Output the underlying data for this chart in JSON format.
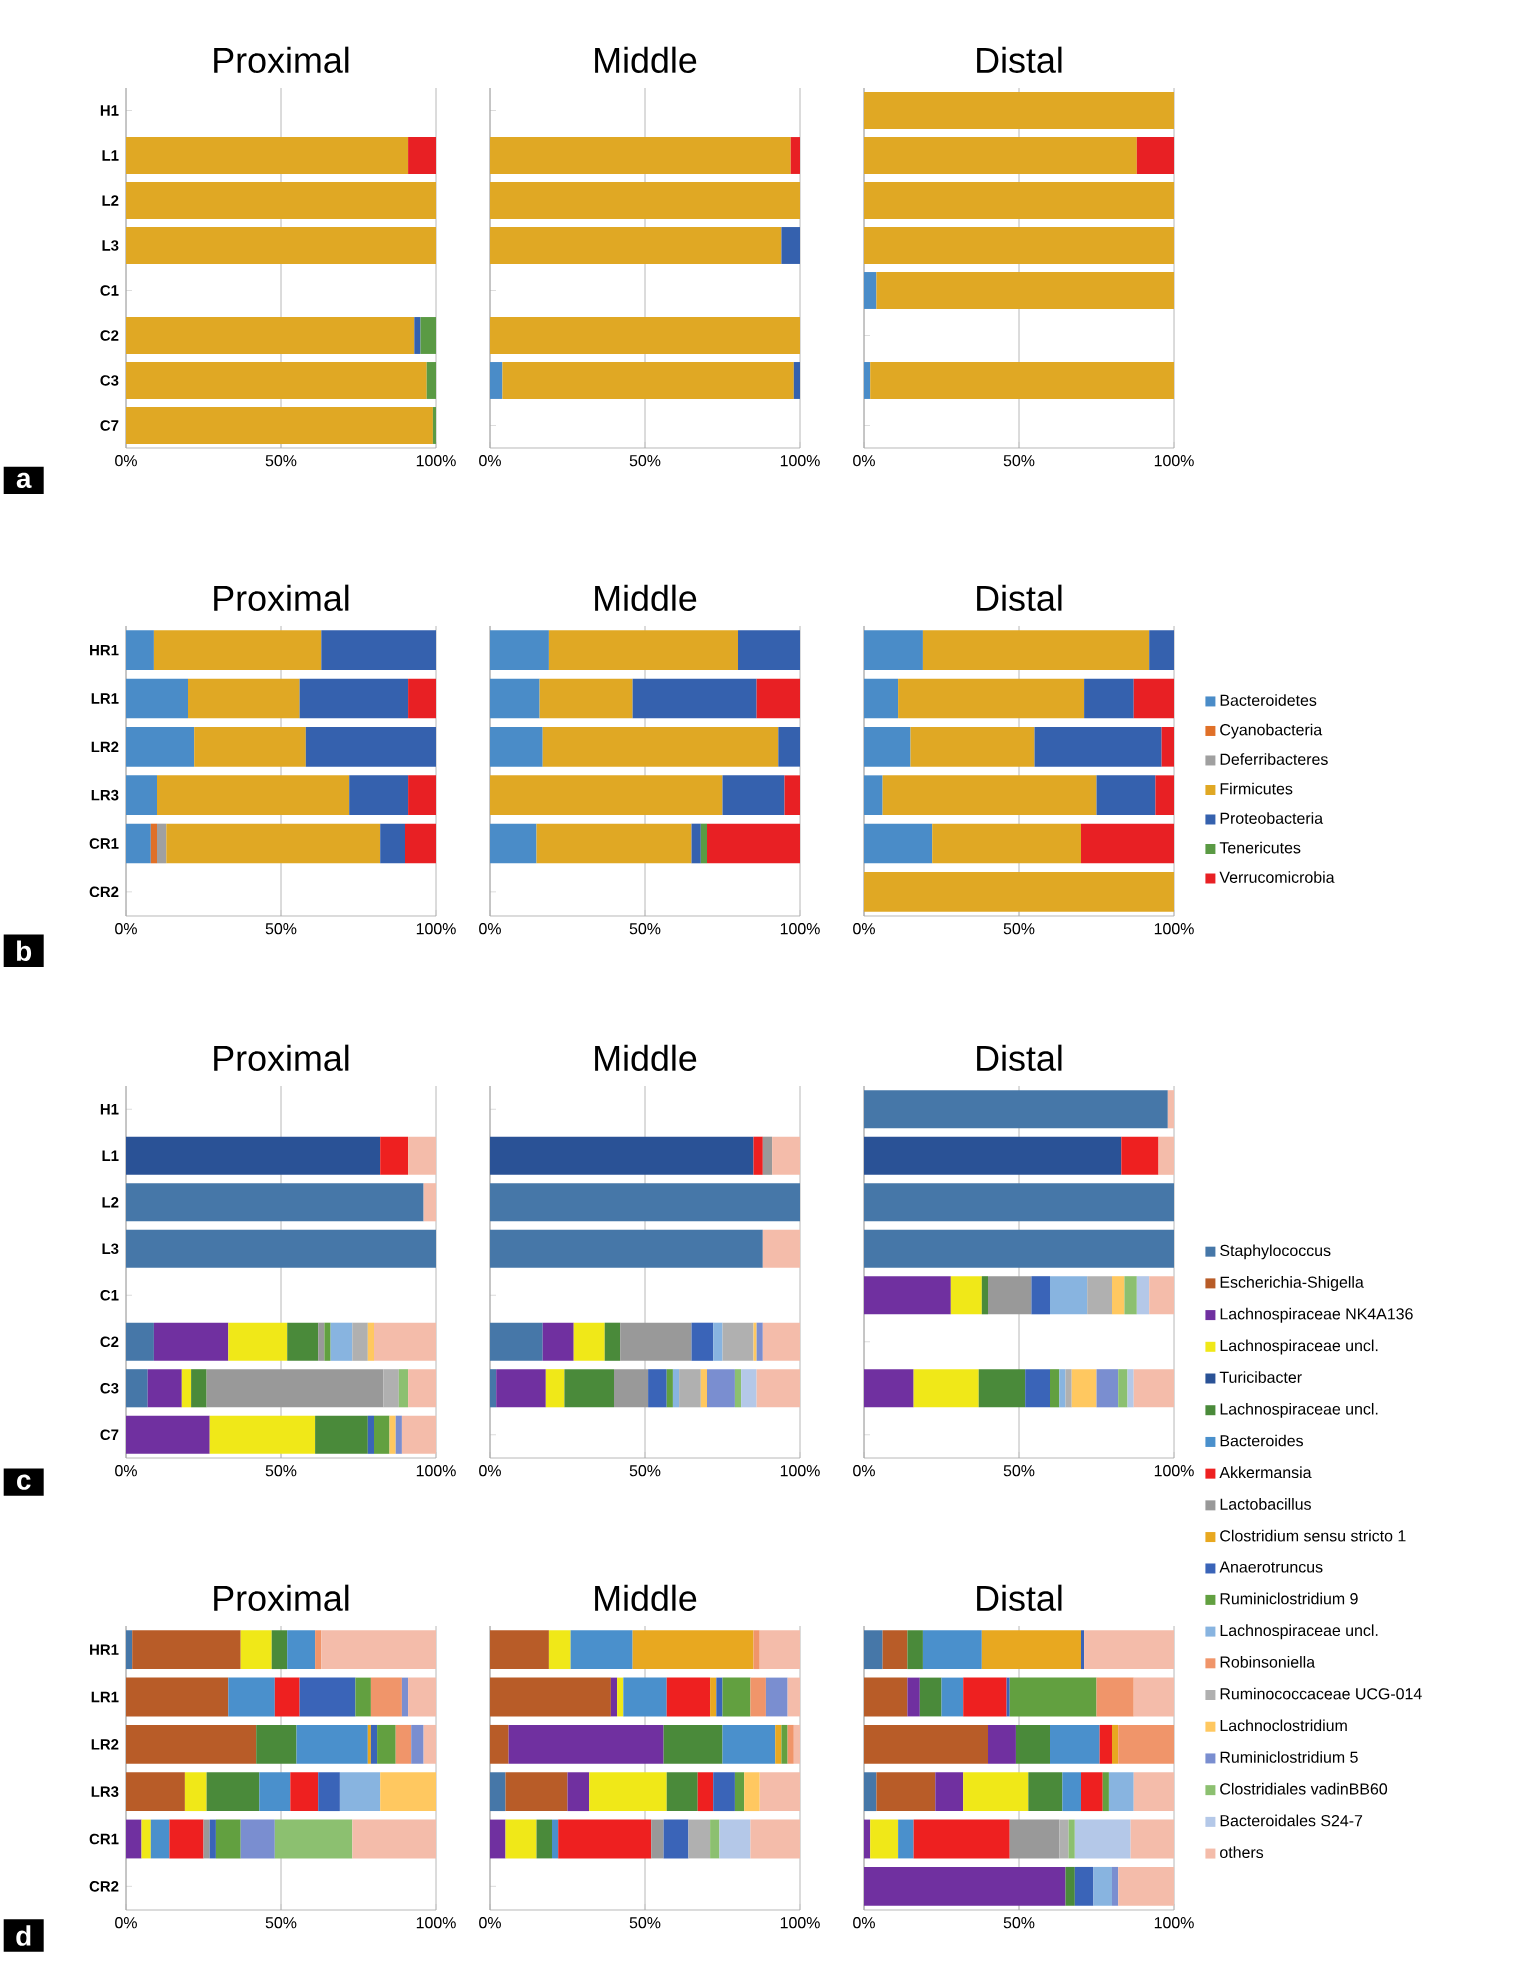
{
  "chart_data": [
    {
      "type": "bar",
      "orientation": "horizontal",
      "stacked": true,
      "title": "Proximal",
      "annotations": [
        "a"
      ],
      "categories": [
        "H1",
        "L1",
        "L2",
        "L3",
        "C1",
        "C2",
        "C3",
        "C7"
      ],
      "xlim": [
        0,
        100
      ],
      "xticks": [
        {
          "value": 0,
          "label": "0%"
        },
        {
          "value": 50,
          "label": "50%"
        },
        {
          "value": 100,
          "label": "100%"
        }
      ],
      "grid": "x",
      "series": [
        {
          "color": "#e0a824",
          "values": [
            null,
            91,
            100,
            100,
            null,
            93,
            97,
            99
          ]
        },
        {
          "color": "#3561ae",
          "values": [
            null,
            null,
            null,
            null,
            null,
            2,
            null,
            null
          ]
        },
        {
          "color": "#5a9a44",
          "values": [
            null,
            null,
            null,
            null,
            null,
            5,
            3,
            1
          ]
        },
        {
          "color": "#e82024",
          "values": [
            null,
            9,
            null,
            null,
            null,
            null,
            null,
            null
          ]
        }
      ]
    },
    {
      "type": "bar",
      "orientation": "horizontal",
      "stacked": true,
      "title": "Middle",
      "categories": [
        null,
        null,
        null,
        null,
        null,
        null,
        null,
        null
      ],
      "xlim": [
        0,
        100
      ],
      "xticks": [
        {
          "value": 0,
          "label": "0%"
        },
        {
          "value": 50,
          "label": "50%"
        },
        {
          "value": 100,
          "label": "100%"
        }
      ],
      "grid": "x",
      "series": [
        {
          "color": "#4a8cc8",
          "values": [
            null,
            null,
            null,
            null,
            null,
            null,
            4,
            null
          ]
        },
        {
          "color": "#e0a824",
          "values": [
            null,
            97,
            100,
            94,
            null,
            100,
            94,
            null
          ]
        },
        {
          "color": "#3561ae",
          "values": [
            null,
            null,
            null,
            6,
            null,
            null,
            2,
            null
          ]
        },
        {
          "color": "#e82024",
          "values": [
            null,
            3,
            null,
            null,
            null,
            null,
            null,
            null
          ]
        }
      ]
    },
    {
      "type": "bar",
      "orientation": "horizontal",
      "stacked": true,
      "title": "Distal",
      "categories": [
        null,
        null,
        null,
        null,
        null,
        null,
        null,
        null
      ],
      "xlim": [
        0,
        100
      ],
      "xticks": [
        {
          "value": 0,
          "label": "0%"
        },
        {
          "value": 50,
          "label": "50%"
        },
        {
          "value": 100,
          "label": "100%"
        }
      ],
      "grid": "x",
      "series": [
        {
          "color": "#4a8cc8",
          "values": [
            null,
            null,
            null,
            null,
            4,
            null,
            2,
            null
          ]
        },
        {
          "color": "#e0a824",
          "values": [
            100,
            88,
            100,
            100,
            96,
            null,
            98,
            null
          ]
        },
        {
          "color": "#e82024",
          "values": [
            null,
            12,
            null,
            null,
            null,
            null,
            null,
            null
          ]
        }
      ]
    },
    {
      "type": "bar",
      "orientation": "horizontal",
      "stacked": true,
      "title": "Proximal",
      "annotations": [
        "b"
      ],
      "categories": [
        "HR1",
        "LR1",
        "LR2",
        "LR3",
        "CR1",
        "CR2"
      ],
      "xlim": [
        0,
        100
      ],
      "xticks": [
        {
          "value": 0,
          "label": "0%"
        },
        {
          "value": 50,
          "label": "50%"
        },
        {
          "value": 100,
          "label": "100%"
        }
      ],
      "grid": "x",
      "series": [
        {
          "color": "#4a8cc8",
          "values": [
            9,
            20,
            22,
            10,
            8,
            null
          ]
        },
        {
          "color": "#e07028",
          "values": [
            null,
            null,
            null,
            null,
            2,
            null
          ]
        },
        {
          "color": "#a0a0a0",
          "values": [
            null,
            null,
            null,
            null,
            3,
            null
          ]
        },
        {
          "color": "#e0a824",
          "values": [
            54,
            36,
            36,
            62,
            69,
            null
          ]
        },
        {
          "color": "#3561ae",
          "values": [
            37,
            35,
            42,
            19,
            8,
            null
          ]
        },
        {
          "color": "#e82024",
          "values": [
            null,
            9,
            null,
            9,
            10,
            null
          ]
        }
      ]
    },
    {
      "type": "bar",
      "orientation": "horizontal",
      "stacked": true,
      "title": "Middle",
      "categories": [
        null,
        null,
        null,
        null,
        null,
        null
      ],
      "xlim": [
        0,
        100
      ],
      "xticks": [
        {
          "value": 0,
          "label": "0%"
        },
        {
          "value": 50,
          "label": "50%"
        },
        {
          "value": 100,
          "label": "100%"
        }
      ],
      "grid": "x",
      "series": [
        {
          "color": "#4a8cc8",
          "values": [
            19,
            16,
            17,
            null,
            15,
            null
          ]
        },
        {
          "color": "#e0a824",
          "values": [
            61,
            30,
            76,
            75,
            50,
            null
          ]
        },
        {
          "color": "#3561ae",
          "values": [
            20,
            40,
            7,
            20,
            3,
            null
          ]
        },
        {
          "color": "#5a9a44",
          "values": [
            null,
            null,
            null,
            null,
            2,
            null
          ]
        },
        {
          "color": "#e82024",
          "values": [
            null,
            14,
            null,
            5,
            30,
            null
          ]
        }
      ]
    },
    {
      "type": "bar",
      "orientation": "horizontal",
      "stacked": true,
      "title": "Distal",
      "legend": "right",
      "categories": [
        null,
        null,
        null,
        null,
        null,
        null
      ],
      "xlim": [
        0,
        100
      ],
      "xticks": [
        {
          "value": 0,
          "label": "0%"
        },
        {
          "value": 50,
          "label": "50%"
        },
        {
          "value": 100,
          "label": "100%"
        }
      ],
      "grid": "x",
      "series": [
        {
          "name": "Bacteroidetes",
          "color": "#4a8cc8",
          "values": [
            19,
            11,
            15,
            6,
            22,
            null
          ]
        },
        {
          "name": "Cyanobacteria",
          "color": "#e07028",
          "values": [
            null,
            null,
            null,
            null,
            null,
            null
          ]
        },
        {
          "name": "Deferribacteres",
          "color": "#a0a0a0",
          "values": [
            null,
            null,
            null,
            null,
            null,
            null
          ]
        },
        {
          "name": "Firmicutes",
          "color": "#e0a824",
          "values": [
            73,
            60,
            40,
            69,
            48,
            100
          ]
        },
        {
          "name": "Proteobacteria",
          "color": "#3561ae",
          "values": [
            8,
            16,
            41,
            19,
            null,
            null
          ]
        },
        {
          "name": "Tenericutes",
          "color": "#5a9a44",
          "values": [
            null,
            null,
            null,
            null,
            null,
            null
          ]
        },
        {
          "name": "Verrucomicrobia",
          "color": "#e82024",
          "values": [
            null,
            13,
            4,
            6,
            30,
            null
          ]
        }
      ]
    },
    {
      "type": "bar",
      "orientation": "horizontal",
      "stacked": true,
      "title": "Proximal",
      "annotations": [
        "c"
      ],
      "categories": [
        "H1",
        "L1",
        "L2",
        "L3",
        "C1",
        "C2",
        "C3",
        "C7"
      ],
      "xlim": [
        0,
        100
      ],
      "xticks": [
        {
          "value": 0,
          "label": "0%"
        },
        {
          "value": 50,
          "label": "50%"
        },
        {
          "value": 100,
          "label": "100%"
        }
      ],
      "grid": "x",
      "series": [
        {
          "color": "#4677a8",
          "values": [
            null,
            null,
            96,
            100,
            null,
            9,
            7,
            null
          ]
        },
        {
          "color": "#7030a0",
          "values": [
            null,
            null,
            null,
            null,
            null,
            24,
            11,
            27
          ]
        },
        {
          "color": "#f0e818",
          "values": [
            null,
            null,
            null,
            null,
            null,
            19,
            3,
            34
          ]
        },
        {
          "color": "#2a5296",
          "values": [
            null,
            82,
            null,
            null,
            null,
            null,
            null,
            null
          ]
        },
        {
          "color": "#4a8a3a",
          "values": [
            null,
            null,
            null,
            null,
            null,
            10,
            5,
            17
          ]
        },
        {
          "color": "#ee2020",
          "values": [
            null,
            9,
            null,
            null,
            null,
            null,
            null,
            null
          ]
        },
        {
          "color": "#999999",
          "values": [
            null,
            null,
            null,
            null,
            null,
            2,
            57,
            null
          ]
        },
        {
          "color": "#3a64b8",
          "values": [
            null,
            null,
            null,
            null,
            null,
            null,
            null,
            2
          ]
        },
        {
          "color": "#62a040",
          "values": [
            null,
            null,
            null,
            null,
            null,
            2,
            null,
            5
          ]
        },
        {
          "color": "#88b4e0",
          "values": [
            null,
            null,
            null,
            null,
            null,
            7,
            null,
            null
          ]
        },
        {
          "color": "#b0b0b0",
          "values": [
            null,
            null,
            null,
            null,
            null,
            5,
            5,
            null
          ]
        },
        {
          "color": "#ffc860",
          "values": [
            null,
            null,
            null,
            null,
            null,
            2,
            null,
            2
          ]
        },
        {
          "color": "#7a8ed0",
          "values": [
            null,
            null,
            null,
            null,
            null,
            null,
            null,
            2
          ]
        },
        {
          "color": "#8cc070",
          "values": [
            null,
            null,
            null,
            null,
            null,
            null,
            3,
            null
          ]
        },
        {
          "color": "#f4bcaa",
          "values": [
            null,
            9,
            4,
            null,
            null,
            20,
            9,
            11
          ]
        }
      ]
    },
    {
      "type": "bar",
      "orientation": "horizontal",
      "stacked": true,
      "title": "Middle",
      "categories": [
        null,
        null,
        null,
        null,
        null,
        null,
        null,
        null
      ],
      "xlim": [
        0,
        100
      ],
      "xticks": [
        {
          "value": 0,
          "label": "0%"
        },
        {
          "value": 50,
          "label": "50%"
        },
        {
          "value": 100,
          "label": "100%"
        }
      ],
      "grid": "x",
      "series": [
        {
          "color": "#4677a8",
          "values": [
            null,
            null,
            100,
            88,
            null,
            17,
            2,
            null
          ]
        },
        {
          "color": "#7030a0",
          "values": [
            null,
            null,
            null,
            null,
            null,
            10,
            16,
            null
          ]
        },
        {
          "color": "#f0e818",
          "values": [
            null,
            null,
            null,
            null,
            null,
            10,
            6,
            null
          ]
        },
        {
          "color": "#2a5296",
          "values": [
            null,
            85,
            null,
            null,
            null,
            null,
            null,
            null
          ]
        },
        {
          "color": "#4a8a3a",
          "values": [
            null,
            null,
            null,
            null,
            null,
            5,
            16,
            null
          ]
        },
        {
          "color": "#ee2020",
          "values": [
            null,
            3,
            null,
            null,
            null,
            null,
            null,
            null
          ]
        },
        {
          "color": "#999999",
          "values": [
            null,
            3,
            null,
            null,
            null,
            23,
            11,
            null
          ]
        },
        {
          "color": "#3a64b8",
          "values": [
            null,
            null,
            null,
            null,
            null,
            7,
            6,
            null
          ]
        },
        {
          "color": "#62a040",
          "values": [
            null,
            null,
            null,
            null,
            null,
            null,
            2,
            null
          ]
        },
        {
          "color": "#88b4e0",
          "values": [
            null,
            null,
            null,
            null,
            null,
            3,
            2,
            null
          ]
        },
        {
          "color": "#b0b0b0",
          "values": [
            null,
            null,
            null,
            null,
            null,
            10,
            7,
            null
          ]
        },
        {
          "color": "#ffc860",
          "values": [
            null,
            null,
            null,
            null,
            null,
            1,
            2,
            null
          ]
        },
        {
          "color": "#7a8ed0",
          "values": [
            null,
            null,
            null,
            null,
            null,
            2,
            9,
            null
          ]
        },
        {
          "color": "#8cc070",
          "values": [
            null,
            null,
            null,
            null,
            null,
            null,
            2,
            null
          ]
        },
        {
          "color": "#b4c8e8",
          "values": [
            null,
            null,
            null,
            null,
            null,
            null,
            5,
            null
          ]
        },
        {
          "color": "#f4bcaa",
          "values": [
            null,
            9,
            null,
            12,
            null,
            12,
            14,
            null
          ]
        }
      ]
    },
    {
      "type": "bar",
      "orientation": "horizontal",
      "stacked": true,
      "title": "Distal",
      "legend": "right",
      "categories": [
        null,
        null,
        null,
        null,
        null,
        null,
        null,
        null
      ],
      "xlim": [
        0,
        100
      ],
      "xticks": [
        {
          "value": 0,
          "label": "0%"
        },
        {
          "value": 50,
          "label": "50%"
        },
        {
          "value": 100,
          "label": "100%"
        }
      ],
      "grid": "x",
      "series": [
        {
          "name": "Staphylococcus",
          "color": "#4677a8",
          "values": [
            98,
            null,
            100,
            100,
            null,
            null,
            null,
            null
          ]
        },
        {
          "name": "Escherichia-Shigella",
          "color": "#b85c28",
          "values": [
            null,
            null,
            null,
            null,
            null,
            null,
            null,
            null
          ]
        },
        {
          "name": "Lachnospiraceae NK4A136",
          "color": "#7030a0",
          "values": [
            null,
            null,
            null,
            null,
            28,
            null,
            16,
            null
          ]
        },
        {
          "name": "Lachnospiraceae uncl.",
          "color": "#f0e818",
          "values": [
            null,
            null,
            null,
            null,
            10,
            null,
            21,
            null
          ]
        },
        {
          "name": "Turicibacter",
          "color": "#2a5296",
          "values": [
            null,
            83,
            null,
            null,
            null,
            null,
            null,
            null
          ]
        },
        {
          "name": "Lachnospiraceae uncl.",
          "color": "#4a8a3a",
          "values": [
            null,
            null,
            null,
            null,
            2,
            null,
            15,
            null
          ]
        },
        {
          "name": "Bacteroides",
          "color": "#4a90cc",
          "values": [
            null,
            null,
            null,
            null,
            null,
            null,
            null,
            null
          ]
        },
        {
          "name": "Akkermansia",
          "color": "#ee2020",
          "values": [
            null,
            12,
            null,
            null,
            null,
            null,
            null,
            null
          ]
        },
        {
          "name": "Lactobacillus",
          "color": "#999999",
          "values": [
            null,
            null,
            null,
            null,
            14,
            null,
            null,
            null
          ]
        },
        {
          "name": "Clostridium sensu stricto 1",
          "color": "#e8a820",
          "values": [
            null,
            null,
            null,
            null,
            null,
            null,
            null,
            null
          ]
        },
        {
          "name": "Anaerotruncus",
          "color": "#3a64b8",
          "values": [
            null,
            null,
            null,
            null,
            6,
            null,
            8,
            null
          ]
        },
        {
          "name": "Ruminiclostridium 9",
          "color": "#62a040",
          "values": [
            null,
            null,
            null,
            null,
            null,
            null,
            3,
            null
          ]
        },
        {
          "name": "Lachnospiraceae uncl.",
          "color": "#88b4e0",
          "values": [
            null,
            null,
            null,
            null,
            12,
            null,
            2,
            null
          ]
        },
        {
          "name": "Robinsoniella",
          "color": "#f0956a",
          "values": [
            null,
            null,
            null,
            null,
            null,
            null,
            null,
            null
          ]
        },
        {
          "name": "Ruminococcaceae UCG-014",
          "color": "#b0b0b0",
          "values": [
            null,
            null,
            null,
            null,
            8,
            null,
            2,
            null
          ]
        },
        {
          "name": "Lachnoclostridium",
          "color": "#ffc860",
          "values": [
            null,
            null,
            null,
            null,
            4,
            null,
            8,
            null
          ]
        },
        {
          "name": "Ruminiclostridium 5",
          "color": "#7a8ed0",
          "values": [
            null,
            null,
            null,
            null,
            null,
            null,
            7,
            null
          ]
        },
        {
          "name": "Clostridiales vadinBB60",
          "color": "#8cc070",
          "values": [
            null,
            null,
            null,
            null,
            4,
            null,
            3,
            null
          ]
        },
        {
          "name": "Bacteroidales S24-7",
          "color": "#b4c8e8",
          "values": [
            null,
            null,
            null,
            null,
            4,
            null,
            2,
            null
          ]
        },
        {
          "name": "others",
          "color": "#f4bcaa",
          "values": [
            2,
            5,
            null,
            null,
            8,
            null,
            13,
            null
          ]
        }
      ]
    },
    {
      "type": "bar",
      "orientation": "horizontal",
      "stacked": true,
      "title": "Proximal",
      "annotations": [
        "d"
      ],
      "categories": [
        "HR1",
        "LR1",
        "LR2",
        "LR3",
        "CR1",
        "CR2"
      ],
      "xlim": [
        0,
        100
      ],
      "xticks": [
        {
          "value": 0,
          "label": "0%"
        },
        {
          "value": 50,
          "label": "50%"
        },
        {
          "value": 100,
          "label": "100%"
        }
      ],
      "grid": "x",
      "series": [
        {
          "color": "#4677a8",
          "values": [
            2,
            null,
            null,
            null,
            null,
            null
          ]
        },
        {
          "color": "#b85c28",
          "values": [
            35,
            33,
            42,
            19,
            null,
            null
          ]
        },
        {
          "color": "#7030a0",
          "values": [
            null,
            null,
            null,
            null,
            5,
            null
          ]
        },
        {
          "color": "#f0e818",
          "values": [
            10,
            null,
            null,
            7,
            3,
            null
          ]
        },
        {
          "color": "#4a8a3a",
          "values": [
            5,
            null,
            13,
            17,
            null,
            null
          ]
        },
        {
          "color": "#4a90cc",
          "values": [
            9,
            15,
            23,
            10,
            6,
            null
          ]
        },
        {
          "color": "#ee2020",
          "values": [
            null,
            8,
            null,
            9,
            11,
            null
          ]
        },
        {
          "color": "#999999",
          "values": [
            null,
            null,
            null,
            null,
            2,
            null
          ]
        },
        {
          "color": "#e8a820",
          "values": [
            null,
            null,
            1,
            null,
            null,
            null
          ]
        },
        {
          "color": "#3a64b8",
          "values": [
            null,
            18,
            2,
            7,
            2,
            null
          ]
        },
        {
          "color": "#62a040",
          "values": [
            null,
            5,
            6,
            null,
            8,
            null
          ]
        },
        {
          "color": "#88b4e0",
          "values": [
            null,
            null,
            null,
            13,
            null,
            null
          ]
        },
        {
          "color": "#f0956a",
          "values": [
            2,
            10,
            5,
            null,
            null,
            null
          ]
        },
        {
          "color": "#ffc860",
          "values": [
            null,
            null,
            null,
            18,
            null,
            null
          ]
        },
        {
          "color": "#7a8ed0",
          "values": [
            null,
            2,
            4,
            null,
            11,
            null
          ]
        },
        {
          "color": "#8cc070",
          "values": [
            null,
            null,
            null,
            null,
            25,
            null
          ]
        },
        {
          "color": "#f4bcaa",
          "values": [
            37,
            9,
            4,
            null,
            27,
            null
          ]
        }
      ]
    },
    {
      "type": "bar",
      "orientation": "horizontal",
      "stacked": true,
      "title": "Middle",
      "categories": [
        null,
        null,
        null,
        null,
        null,
        null
      ],
      "xlim": [
        0,
        100
      ],
      "xticks": [
        {
          "value": 0,
          "label": "0%"
        },
        {
          "value": 50,
          "label": "50%"
        },
        {
          "value": 100,
          "label": "100%"
        }
      ],
      "grid": "x",
      "series": [
        {
          "color": "#4677a8",
          "values": [
            null,
            null,
            null,
            5,
            null,
            null
          ]
        },
        {
          "color": "#b85c28",
          "values": [
            19,
            39,
            6,
            20,
            null,
            null
          ]
        },
        {
          "color": "#7030a0",
          "values": [
            null,
            2,
            50,
            7,
            5,
            null
          ]
        },
        {
          "color": "#f0e818",
          "values": [
            7,
            2,
            null,
            25,
            10,
            null
          ]
        },
        {
          "color": "#4a8a3a",
          "values": [
            null,
            null,
            19,
            10,
            5,
            null
          ]
        },
        {
          "color": "#4a90cc",
          "values": [
            20,
            14,
            17,
            null,
            2,
            null
          ]
        },
        {
          "color": "#ee2020",
          "values": [
            null,
            14,
            null,
            5,
            30,
            null
          ]
        },
        {
          "color": "#999999",
          "values": [
            null,
            null,
            null,
            null,
            4,
            null
          ]
        },
        {
          "color": "#e8a820",
          "values": [
            39,
            2,
            2,
            null,
            null,
            null
          ]
        },
        {
          "color": "#3a64b8",
          "values": [
            null,
            2,
            null,
            7,
            8,
            null
          ]
        },
        {
          "color": "#62a040",
          "values": [
            null,
            9,
            2,
            3,
            null,
            null
          ]
        },
        {
          "color": "#f0956a",
          "values": [
            2,
            5,
            2,
            null,
            null,
            null
          ]
        },
        {
          "color": "#b0b0b0",
          "values": [
            null,
            null,
            null,
            null,
            7,
            null
          ]
        },
        {
          "color": "#ffc860",
          "values": [
            null,
            null,
            null,
            5,
            null,
            null
          ]
        },
        {
          "color": "#7a8ed0",
          "values": [
            null,
            7,
            null,
            null,
            null,
            null
          ]
        },
        {
          "color": "#8cc070",
          "values": [
            null,
            null,
            null,
            null,
            3,
            null
          ]
        },
        {
          "color": "#b4c8e8",
          "values": [
            null,
            null,
            null,
            null,
            10,
            null
          ]
        },
        {
          "color": "#f4bcaa",
          "values": [
            13,
            4,
            2,
            13,
            16,
            null
          ]
        }
      ]
    },
    {
      "type": "bar",
      "orientation": "horizontal",
      "stacked": true,
      "title": "Distal",
      "categories": [
        null,
        null,
        null,
        null,
        null,
        null
      ],
      "xlim": [
        0,
        100
      ],
      "xticks": [
        {
          "value": 0,
          "label": "0%"
        },
        {
          "value": 50,
          "label": "50%"
        },
        {
          "value": 100,
          "label": "100%"
        }
      ],
      "grid": "x",
      "series": [
        {
          "color": "#4677a8",
          "values": [
            6,
            null,
            null,
            4,
            null,
            null
          ]
        },
        {
          "color": "#b85c28",
          "values": [
            8,
            14,
            40,
            19,
            null,
            null
          ]
        },
        {
          "color": "#7030a0",
          "values": [
            null,
            4,
            9,
            9,
            2,
            65
          ]
        },
        {
          "color": "#f0e818",
          "values": [
            null,
            null,
            null,
            21,
            9,
            null
          ]
        },
        {
          "color": "#4a8a3a",
          "values": [
            5,
            7,
            11,
            11,
            null,
            3
          ]
        },
        {
          "color": "#4a90cc",
          "values": [
            19,
            7,
            16,
            6,
            5,
            null
          ]
        },
        {
          "color": "#ee2020",
          "values": [
            null,
            14,
            4,
            7,
            31,
            null
          ]
        },
        {
          "color": "#999999",
          "values": [
            null,
            null,
            null,
            null,
            16,
            null
          ]
        },
        {
          "color": "#e8a820",
          "values": [
            32,
            null,
            2,
            null,
            null,
            null
          ]
        },
        {
          "color": "#3a64b8",
          "values": [
            1,
            1,
            null,
            null,
            null,
            6
          ]
        },
        {
          "color": "#62a040",
          "values": [
            null,
            28,
            null,
            2,
            null,
            null
          ]
        },
        {
          "color": "#88b4e0",
          "values": [
            null,
            null,
            null,
            8,
            null,
            6
          ]
        },
        {
          "color": "#f0956a",
          "values": [
            null,
            12,
            18,
            null,
            null,
            null
          ]
        },
        {
          "color": "#b0b0b0",
          "values": [
            null,
            null,
            null,
            null,
            3,
            null
          ]
        },
        {
          "color": "#7a8ed0",
          "values": [
            null,
            null,
            null,
            null,
            null,
            2
          ]
        },
        {
          "color": "#8cc070",
          "values": [
            null,
            null,
            null,
            null,
            2,
            null
          ]
        },
        {
          "color": "#b4c8e8",
          "values": [
            null,
            null,
            null,
            null,
            18,
            null
          ]
        },
        {
          "color": "#f4bcaa",
          "values": [
            29,
            13,
            null,
            13,
            14,
            18
          ]
        }
      ]
    }
  ]
}
